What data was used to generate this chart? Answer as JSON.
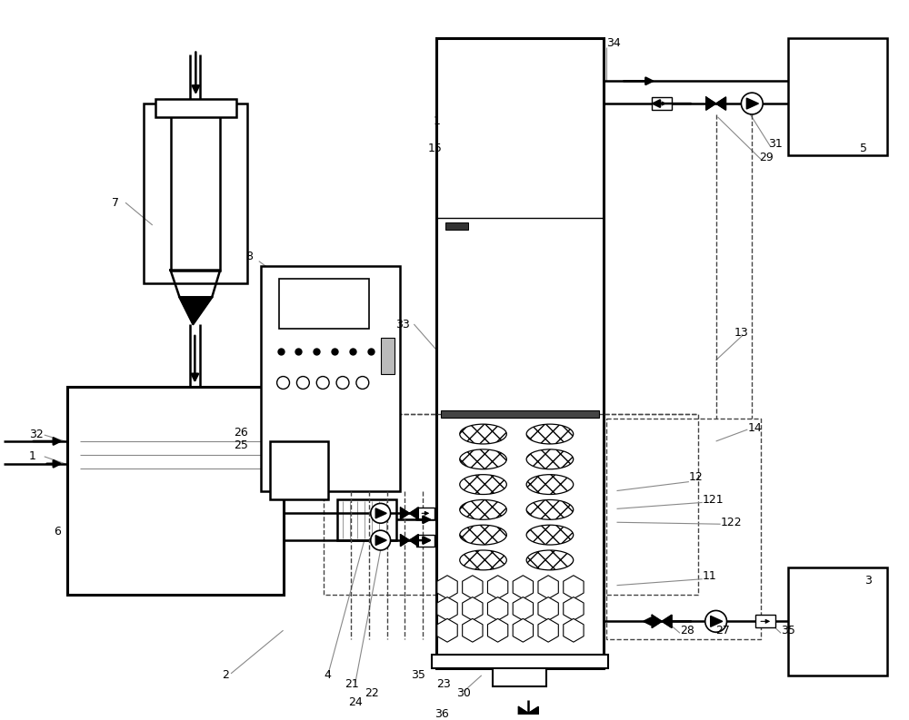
{
  "bg_color": "#ffffff",
  "black": "#000000",
  "gray_dot": "#aaaaaa",
  "dark_gray": "#333333",
  "dashed_color": "#444444",
  "mid_gray": "#888888"
}
